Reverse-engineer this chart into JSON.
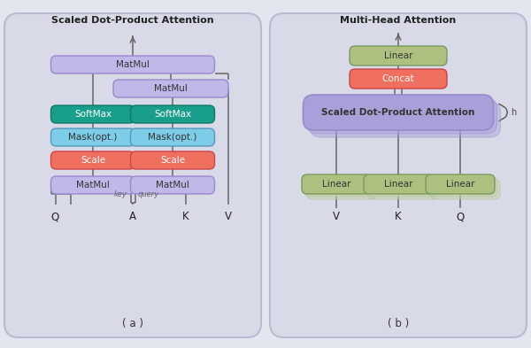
{
  "fig_w": 6.0,
  "fig_h": 3.93,
  "dpi": 100,
  "bg_color": "#e4e6ef",
  "panel_bg": "#d8dae8",
  "colors": {
    "matmul": "#c0b8e8",
    "softmax": "#1a9e8c",
    "mask": "#7dcce8",
    "scale": "#f07060",
    "linear_green": "#adc080",
    "concat_red": "#f07060",
    "sdpa_purple": "#a8a0d8"
  },
  "title_a": "Scaled Dot-Product Attention",
  "title_b": "Multi-Head Attention",
  "label_a": "( a )",
  "label_b": "( b )"
}
